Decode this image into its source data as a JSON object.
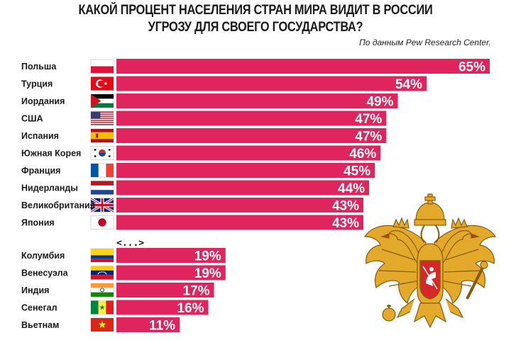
{
  "header": {
    "title_line1": "КАКОЙ ПРОЦЕНТ НАСЕЛЕНИЯ СТРАН МИРА ВИДИТ В РОССИИ",
    "title_line2": "УГРОЗУ ДЛЯ СВОЕГО ГОСУДАРСТВА?",
    "source": "По данным Pew Research Center."
  },
  "colors": {
    "bar": "#e0245e",
    "gold": "#e2a92a",
    "gold_dark": "#a66f10"
  },
  "chart_data": {
    "type": "bar",
    "orientation": "horizontal",
    "title": "КАКОЙ ПРОЦЕНТ НАСЕЛЕНИЯ СТРАН МИРА ВИДИТ В РОССИИ УГРОЗУ ДЛЯ СВОЕГО ГОСУДАРСТВА?",
    "value_suffix": "%",
    "xlim": [
      0,
      65
    ],
    "grid": false,
    "legend": "none",
    "gap_marker": "<...>",
    "groups": [
      {
        "categories": [
          "Польша",
          "Турция",
          "Иордания",
          "США",
          "Испания",
          "Южная Корея",
          "Франция",
          "Нидерланды",
          "Великобритания",
          "Япония"
        ],
        "flags": [
          "poland-flag",
          "turkey-flag",
          "jordan-flag",
          "usa-flag",
          "spain-flag",
          "south-korea-flag",
          "france-flag",
          "netherlands-flag",
          "uk-flag",
          "japan-flag"
        ],
        "values": [
          65,
          54,
          49,
          47,
          47,
          46,
          45,
          44,
          43,
          43
        ]
      },
      {
        "categories": [
          "Колумбия",
          "Венесуэла",
          "Индия",
          "Сенегал",
          "Вьетнам"
        ],
        "flags": [
          "colombia-flag",
          "venezuela-flag",
          "india-flag",
          "senegal-flag",
          "vietnam-flag"
        ],
        "values": [
          19,
          19,
          17,
          16,
          11
        ]
      }
    ]
  },
  "emblem": {
    "icon": "russian-coat-of-arms-icon"
  }
}
